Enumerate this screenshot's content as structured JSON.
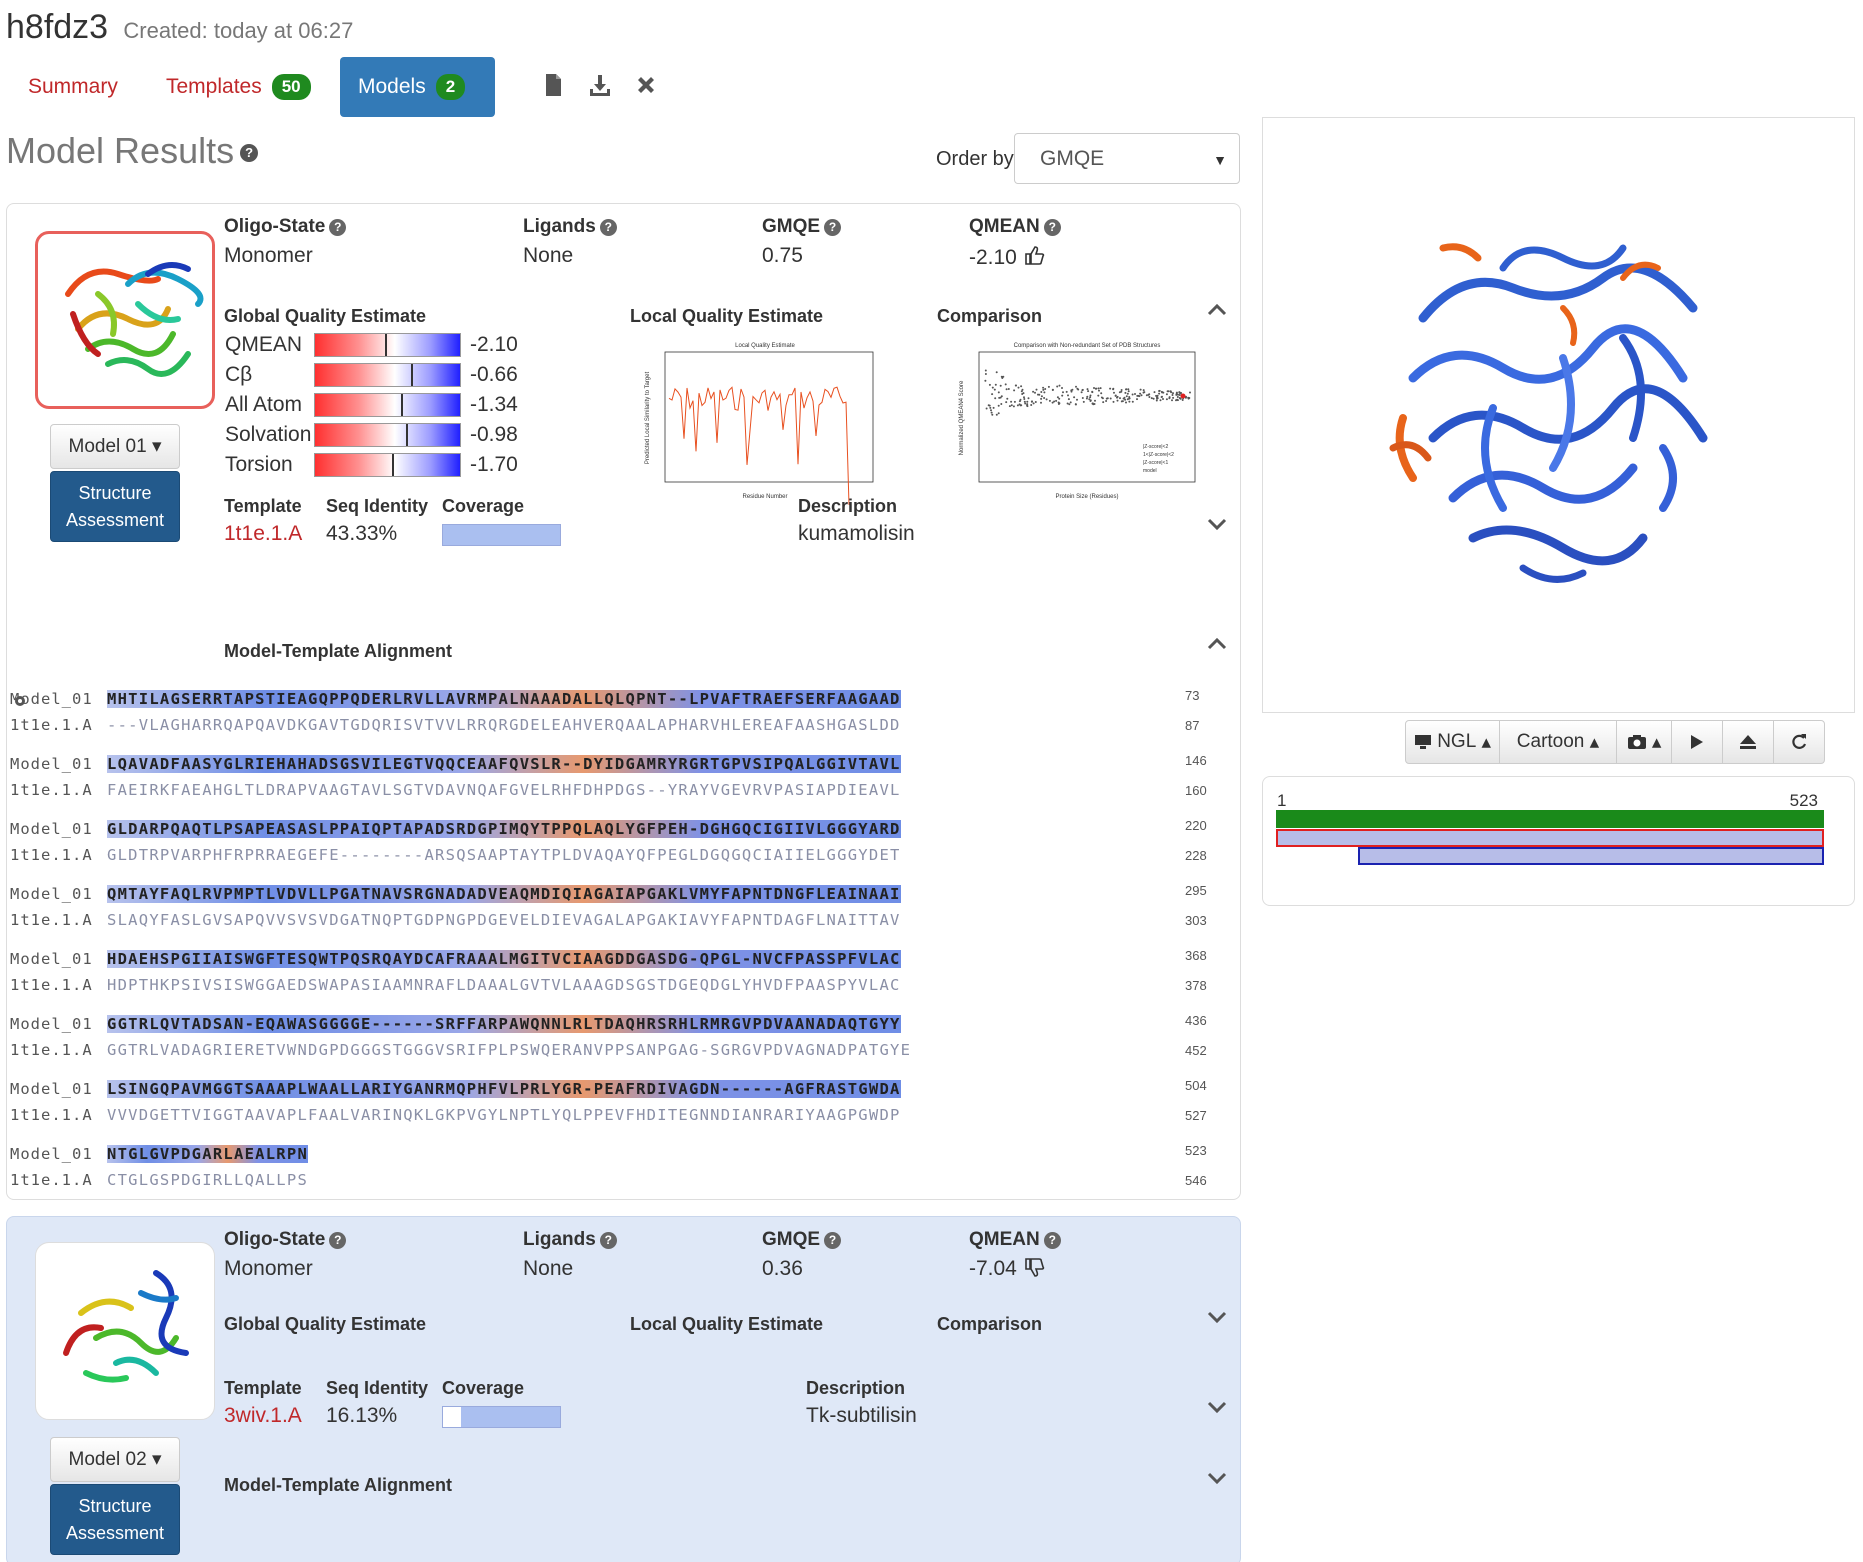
{
  "header": {
    "project_id": "h8fdz3",
    "created": "Created: today at 06:27"
  },
  "tabs": [
    {
      "label": "Summary",
      "badge": ""
    },
    {
      "label": "Templates",
      "badge": "50"
    },
    {
      "label": "Models",
      "badge": "2"
    }
  ],
  "results": {
    "title": "Model Results",
    "order_label": "Order by:",
    "order_value": "GMQE"
  },
  "labels": {
    "oligo": "Oligo-State",
    "ligands": "Ligands",
    "gmqe": "GMQE",
    "qmean": "QMEAN",
    "gqe": "Global Quality Estimate",
    "lqe": "Local Quality Estimate",
    "comparison": "Comparison",
    "template": "Template",
    "seq_identity": "Seq Identity",
    "coverage": "Coverage",
    "description": "Description",
    "alignment": "Model-Template Alignment",
    "structure_assessment_1": "Structure",
    "structure_assessment_2": "Assessment"
  },
  "models": [
    {
      "button": "Model 01",
      "oligo_state": "Monomer",
      "ligands": "None",
      "gmqe": "0.75",
      "qmean": "-2.10",
      "quality": [
        {
          "name": "QMEAN",
          "value": "-2.10",
          "z": -2.1
        },
        {
          "name": "Cβ",
          "value": "-0.66",
          "z": -0.66
        },
        {
          "name": "All Atom",
          "value": "-1.34",
          "z": -1.34
        },
        {
          "name": "Solvation",
          "value": "-0.98",
          "z": -0.98
        },
        {
          "name": "Torsion",
          "value": "-1.70",
          "z": -1.7
        }
      ],
      "local_quality_chart_title": "Local Quality Estimate",
      "local_quality_ylabel": "Predicted Local Similarity to Target",
      "local_quality_xlabel": "Residue Number",
      "comparison_chart_title": "Comparison with Non-redundant Set of PDB Structures",
      "comparison_ylabel": "Normalized QMEAN4 Score",
      "comparison_xlabel": "Protein Size (Residues)",
      "comparison_legend": [
        "|Z-score|<2",
        "1<|Z-score|<2",
        "|Z-score|<1",
        "model"
      ],
      "template": "1t1e.1.A",
      "seq_identity": "43.33%",
      "coverage": 0.84,
      "description": "kumamolisin"
    },
    {
      "button": "Model 02",
      "oligo_state": "Monomer",
      "ligands": "None",
      "gmqe": "0.36",
      "qmean": "-7.04",
      "template": "3wiv.1.A",
      "seq_identity": "16.13%",
      "coverage": 0.82,
      "description": "Tk-subtilisin"
    }
  ],
  "alignment": [
    {
      "m": "MHTILAGSERRTAPSTIEAGQPPQDERLRVLLAVRMPALNAAADALLQLQPNT--LPVAFTRAEFSERFAAGAAD",
      "t": "---VLAGHARRQAPQAVDKGAVTGDQRISVTVVLRRQRGDELEAHVERQAALAPHARVHLEREAFAASHGASLDD",
      "mn": "73",
      "tn": "87"
    },
    {
      "m": "LQAVADFAASYGLRIEHAHADSGSVILEGTVQQCEAAFQVSLR--DYIDGAMRYRGRTGPVSIPQALGGIVTAVL",
      "t": "FAEIRKFAEAHGLTLDRAPVAAGTAVLSGTVDAVNQAFGVELRHFDHPDGS--YRAYVGEVRVPASIAPDIEAVL",
      "mn": "146",
      "tn": "160"
    },
    {
      "m": "GLDARPQAQTLPSAPEASASLPPAIQPTAPADSRDGPIMQYTPPQLAQLYGFPEH-DGHGQCIGIIVLGGGYARD",
      "t": "GLDTRPVARPHFRPRRAEGEFE--------ARSQSAAPTAYTPLDVAQAYQFPEGLDGQGQCIAIIELGGGYDET",
      "mn": "220",
      "tn": "228"
    },
    {
      "m": "QMTAYFAQLRVPMPTLVDVLLPGATNAVSRGNADADVEAQMDIQIAGAIAPGAKLVMYFAPNTDNGFLEAINAAI",
      "t": "SLAQYFASLGVSAPQVVSVSVDGATNQPTGDPNGPDGEVELDIEVAGALAPGAKIAVYFAPNTDAGFLNAITTAV",
      "mn": "295",
      "tn": "303"
    },
    {
      "m": "HDAEHSPGIIAISWGFTESQWTPQSRQAYDCAFRAAALMGITVCIAAGDDGASDG-QPGL-NVCFPASSPFVLAC",
      "t": "HDPTHKPSIVSISWGGAEDSWAPASIAAMNRAFLDAAALGVTVLAAAGDSGSTDGEQDGLYHVDFPAASPYVLAC",
      "mn": "368",
      "tn": "378"
    },
    {
      "m": "GGTRLQVTADSAN-EQAWASGGGGE------SRFFARPAWQNNLRLTDAQHRSRHLRMRGVPDVAANADAQTGYY",
      "t": "GGTRLVADAGRIERETVWNDGPDGGGSTGGGVSRIFPLPSWQERANVPPSANPGAG-SGRGVPDVAGNADPATGYE",
      "mn": "436",
      "tn": "452"
    },
    {
      "m": "LSINGQPAVMGGTSAAAPLWAALLARIYGANRMQPHFVLPRLYGR-PEAFRDIVAGDN------AGFRASTGWDA",
      "t": "VVVDGETTVIGGTAAVAPLFAALVARINQKLGKPVGYLNPTLYQLPPEVFHDITEGNNDIANRARIYAAGPGWDP",
      "mn": "504",
      "tn": "527"
    },
    {
      "m": "NTGLGVPDGARLAEALRPN",
      "t": "CTGLGSPDGIRLLQALLPS",
      "mn": "523",
      "tn": "546"
    }
  ],
  "alignment_labels": {
    "model": "Model_01",
    "template": "1t1e.1.A"
  },
  "viewer": {
    "engine": "NGL",
    "style": "Cartoon"
  },
  "coverage_panel": {
    "start": "1",
    "end": "523"
  },
  "colors": {
    "accent": "#337ab7",
    "badge": "#1f8a1f",
    "link": "#c0282a",
    "model_bar": "#1a8a1a",
    "structure_button": "#235a8c"
  }
}
